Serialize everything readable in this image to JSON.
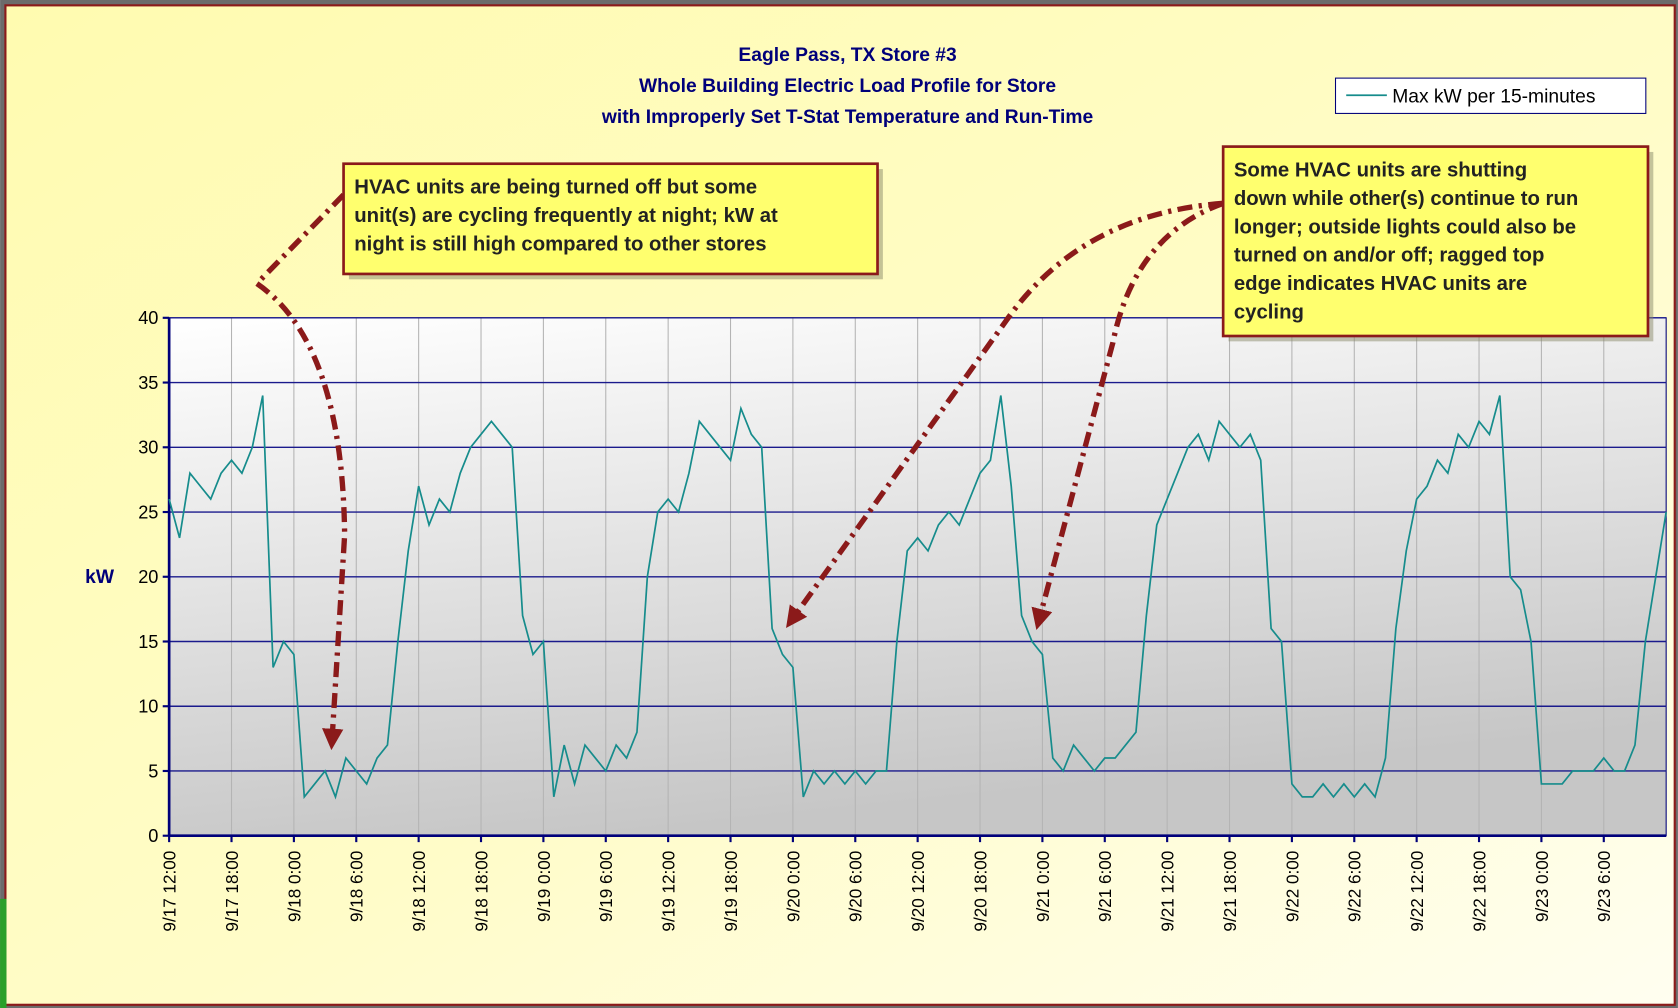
{
  "chart_data": {
    "type": "line",
    "title": [
      "Eagle Pass, TX Store #3",
      "Whole Building Electric Load Profile for Store",
      "with Improperly Set T-Stat Temperature and Run-Time"
    ],
    "y_label": "kW",
    "x": [
      "9/17 12:00",
      "9/17 13:00",
      "9/17 14:00",
      "9/17 15:00",
      "9/17 16:00",
      "9/17 17:00",
      "9/17 18:00",
      "9/17 19:00",
      "9/17 20:00",
      "9/17 21:00",
      "9/17 22:00",
      "9/17 23:00",
      "9/18 0:00",
      "9/18 1:00",
      "9/18 2:00",
      "9/18 3:00",
      "9/18 4:00",
      "9/18 5:00",
      "9/18 6:00",
      "9/18 7:00",
      "9/18 8:00",
      "9/18 9:00",
      "9/18 10:00",
      "9/18 11:00",
      "9/18 12:00",
      "9/18 13:00",
      "9/18 14:00",
      "9/18 15:00",
      "9/18 16:00",
      "9/18 17:00",
      "9/18 18:00",
      "9/18 19:00",
      "9/18 20:00",
      "9/18 21:00",
      "9/18 22:00",
      "9/18 23:00",
      "9/19 0:00",
      "9/19 1:00",
      "9/19 2:00",
      "9/19 3:00",
      "9/19 4:00",
      "9/19 5:00",
      "9/19 6:00",
      "9/19 7:00",
      "9/19 8:00",
      "9/19 9:00",
      "9/19 10:00",
      "9/19 11:00",
      "9/19 12:00",
      "9/19 13:00",
      "9/19 14:00",
      "9/19 15:00",
      "9/19 16:00",
      "9/19 17:00",
      "9/19 18:00",
      "9/19 19:00",
      "9/19 20:00",
      "9/19 21:00",
      "9/19 22:00",
      "9/19 23:00",
      "9/20 0:00",
      "9/20 1:00",
      "9/20 2:00",
      "9/20 3:00",
      "9/20 4:00",
      "9/20 5:00",
      "9/20 6:00",
      "9/20 7:00",
      "9/20 8:00",
      "9/20 9:00",
      "9/20 10:00",
      "9/20 11:00",
      "9/20 12:00",
      "9/20 13:00",
      "9/20 14:00",
      "9/20 15:00",
      "9/20 16:00",
      "9/20 17:00",
      "9/20 18:00",
      "9/20 19:00",
      "9/20 20:00",
      "9/20 21:00",
      "9/20 22:00",
      "9/20 23:00",
      "9/21 0:00",
      "9/21 1:00",
      "9/21 2:00",
      "9/21 3:00",
      "9/21 4:00",
      "9/21 5:00",
      "9/21 6:00",
      "9/21 7:00",
      "9/21 8:00",
      "9/21 9:00",
      "9/21 10:00",
      "9/21 11:00",
      "9/21 12:00",
      "9/21 13:00",
      "9/21 14:00",
      "9/21 15:00",
      "9/21 16:00",
      "9/21 17:00",
      "9/21 18:00",
      "9/21 19:00",
      "9/21 20:00",
      "9/21 21:00",
      "9/21 22:00",
      "9/21 23:00",
      "9/22 0:00",
      "9/22 1:00",
      "9/22 2:00",
      "9/22 3:00",
      "9/22 4:00",
      "9/22 5:00",
      "9/22 6:00",
      "9/22 7:00",
      "9/22 8:00",
      "9/22 9:00",
      "9/22 10:00",
      "9/22 11:00",
      "9/22 12:00",
      "9/22 13:00",
      "9/22 14:00",
      "9/22 15:00",
      "9/22 16:00",
      "9/22 17:00",
      "9/22 18:00",
      "9/22 19:00",
      "9/22 20:00",
      "9/22 21:00",
      "9/22 22:00",
      "9/22 23:00",
      "9/23 0:00",
      "9/23 1:00",
      "9/23 2:00",
      "9/23 3:00",
      "9/23 4:00",
      "9/23 5:00",
      "9/23 6:00",
      "9/23 7:00",
      "9/23 8:00",
      "9/23 9:00",
      "9/23 10:00",
      "9/23 11:00",
      "9/23 12:00"
    ],
    "series": [
      {
        "name": "Max kW per 15-minutes",
        "color": "#168c8c",
        "values": [
          26,
          23,
          28,
          27,
          26,
          28,
          29,
          28,
          30,
          34,
          13,
          15,
          14,
          3,
          4,
          5,
          3,
          6,
          5,
          4,
          6,
          7,
          15,
          22,
          27,
          24,
          26,
          25,
          28,
          30,
          31,
          32,
          31,
          30,
          17,
          14,
          15,
          3,
          7,
          4,
          7,
          6,
          5,
          7,
          6,
          8,
          20,
          25,
          26,
          25,
          28,
          32,
          31,
          30,
          29,
          33,
          31,
          30,
          16,
          14,
          13,
          3,
          5,
          4,
          5,
          4,
          5,
          4,
          5,
          5,
          15,
          22,
          23,
          22,
          24,
          25,
          24,
          26,
          28,
          29,
          34,
          27,
          17,
          15,
          14,
          6,
          5,
          7,
          6,
          5,
          6,
          6,
          7,
          8,
          17,
          24,
          26,
          28,
          30,
          31,
          29,
          32,
          31,
          30,
          31,
          29,
          16,
          15,
          4,
          3,
          3,
          4,
          3,
          4,
          3,
          4,
          3,
          6,
          16,
          22,
          26,
          27,
          29,
          28,
          31,
          30,
          32,
          31,
          34,
          20,
          19,
          15,
          4,
          4,
          4,
          5,
          5,
          5,
          6,
          5,
          5,
          7,
          15,
          20,
          25
        ]
      }
    ],
    "xlim": [
      "9/17 12:00",
      "9/23 12:00"
    ],
    "xticks": [
      "9/17 12:00",
      "9/17 18:00",
      "9/18 0:00",
      "9/18 6:00",
      "9/18 12:00",
      "9/18 18:00",
      "9/19 0:00",
      "9/19 6:00",
      "9/19 12:00",
      "9/19 18:00",
      "9/20 0:00",
      "9/20 6:00",
      "9/20 12:00",
      "9/20 18:00",
      "9/21 0:00",
      "9/21 6:00",
      "9/21 12:00",
      "9/21 18:00",
      "9/22 0:00",
      "9/22 6:00",
      "9/22 12:00",
      "9/22 18:00",
      "9/23 0:00",
      "9/23 6:00"
    ],
    "ylim": [
      0,
      40
    ],
    "yticks": [
      0,
      5,
      10,
      15,
      20,
      25,
      30,
      35,
      40
    ],
    "grid": true,
    "legend": "top-right",
    "annotations": [
      {
        "lines": [
          "HVAC units are being turned off but some",
          "unit(s) are cycling frequently at night; kW at",
          "night is still high compared to other stores"
        ]
      },
      {
        "lines": [
          "Some HVAC units are shutting",
          "down while other(s) continue to run",
          "longer; outside lights could also be",
          "turned on and/or off; ragged top",
          "edge indicates HVAC units are",
          "cycling"
        ]
      }
    ]
  }
}
